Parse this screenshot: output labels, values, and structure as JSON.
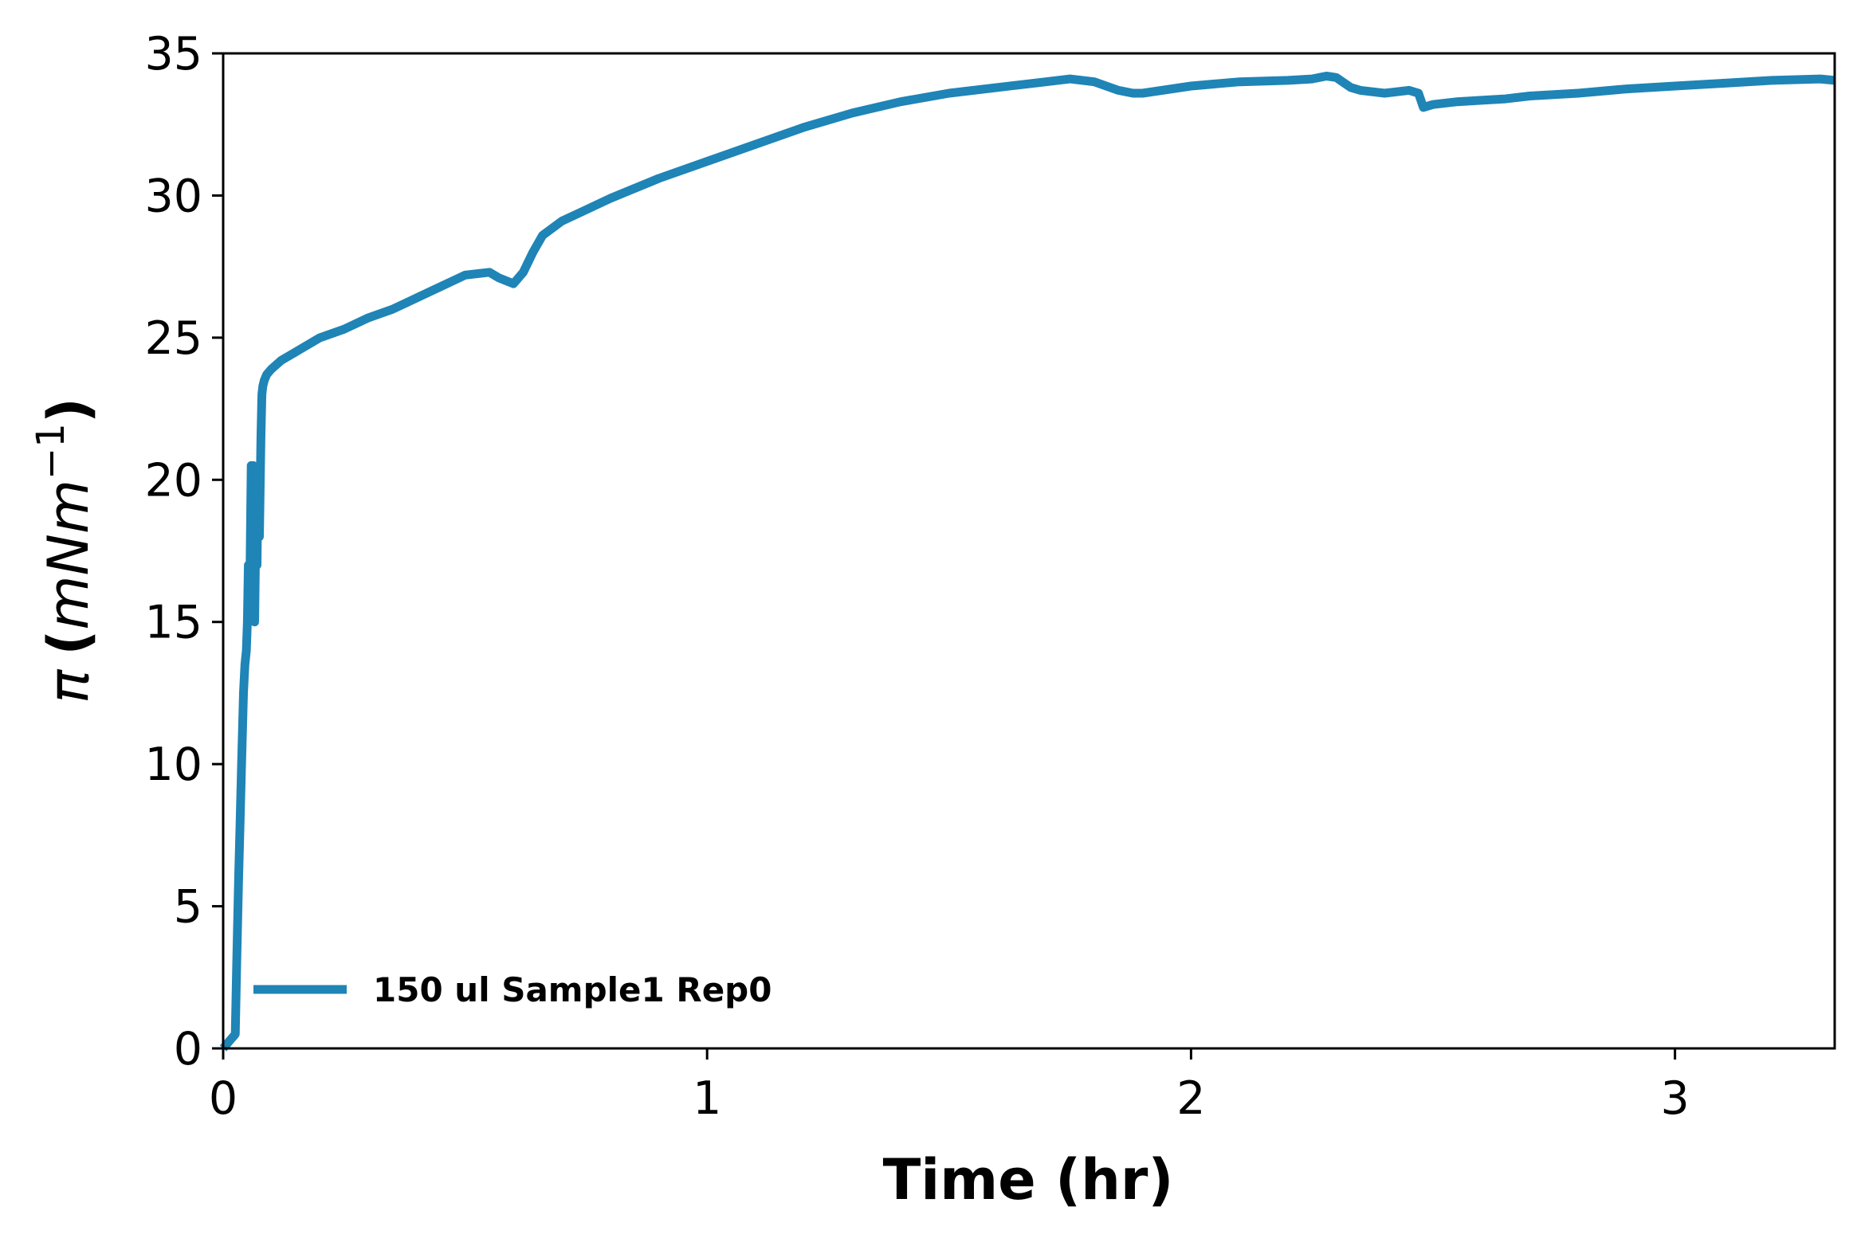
{
  "chart_data": {
    "type": "line",
    "title": "",
    "xlabel": "Time (hr)",
    "ylabel": {
      "symbol": "π",
      "open": "(",
      "unit": "mNm",
      "exponent": "−1",
      "close": ")"
    },
    "xlim": [
      0,
      3.33
    ],
    "ylim": [
      0,
      35
    ],
    "x_ticks": [
      0,
      1,
      2,
      3
    ],
    "y_ticks": [
      0,
      5,
      10,
      15,
      20,
      25,
      30,
      35
    ],
    "grid": false,
    "legend_position": "lower-left",
    "color": "#1f84b6",
    "series": [
      {
        "name": "150 ul Sample1 Rep0",
        "x": [
          0.0,
          0.015,
          0.025,
          0.028,
          0.032,
          0.035,
          0.038,
          0.042,
          0.045,
          0.048,
          0.05,
          0.052,
          0.055,
          0.058,
          0.06,
          0.062,
          0.065,
          0.068,
          0.07,
          0.072,
          0.075,
          0.078,
          0.08,
          0.082,
          0.085,
          0.09,
          0.1,
          0.12,
          0.15,
          0.18,
          0.2,
          0.25,
          0.3,
          0.35,
          0.4,
          0.45,
          0.5,
          0.55,
          0.57,
          0.6,
          0.62,
          0.64,
          0.66,
          0.7,
          0.75,
          0.8,
          0.9,
          1.0,
          1.1,
          1.2,
          1.3,
          1.4,
          1.5,
          1.6,
          1.7,
          1.75,
          1.8,
          1.85,
          1.88,
          1.9,
          2.0,
          2.1,
          2.2,
          2.25,
          2.28,
          2.3,
          2.33,
          2.35,
          2.4,
          2.45,
          2.47,
          2.48,
          2.5,
          2.55,
          2.6,
          2.65,
          2.7,
          2.8,
          2.9,
          3.0,
          3.1,
          3.2,
          3.3,
          3.33
        ],
        "y": [
          0.0,
          0.3,
          0.5,
          3.0,
          6.0,
          8.0,
          10.0,
          12.5,
          13.5,
          14.0,
          15.0,
          17.0,
          16.0,
          20.5,
          17.0,
          20.5,
          15.0,
          19.0,
          17.0,
          20.0,
          18.0,
          21.5,
          23.0,
          23.3,
          23.5,
          23.7,
          23.9,
          24.2,
          24.5,
          24.8,
          25.0,
          25.3,
          25.7,
          26.0,
          26.4,
          26.8,
          27.2,
          27.3,
          27.1,
          26.9,
          27.3,
          28.0,
          28.6,
          29.1,
          29.5,
          29.9,
          30.6,
          31.2,
          31.8,
          32.4,
          32.9,
          33.3,
          33.6,
          33.8,
          34.0,
          34.1,
          34.0,
          33.7,
          33.6,
          33.6,
          33.85,
          34.0,
          34.05,
          34.1,
          34.2,
          34.15,
          33.8,
          33.7,
          33.6,
          33.7,
          33.6,
          33.1,
          33.2,
          33.3,
          33.35,
          33.4,
          33.5,
          33.6,
          33.75,
          33.85,
          33.95,
          34.05,
          34.1,
          34.05
        ]
      }
    ]
  }
}
